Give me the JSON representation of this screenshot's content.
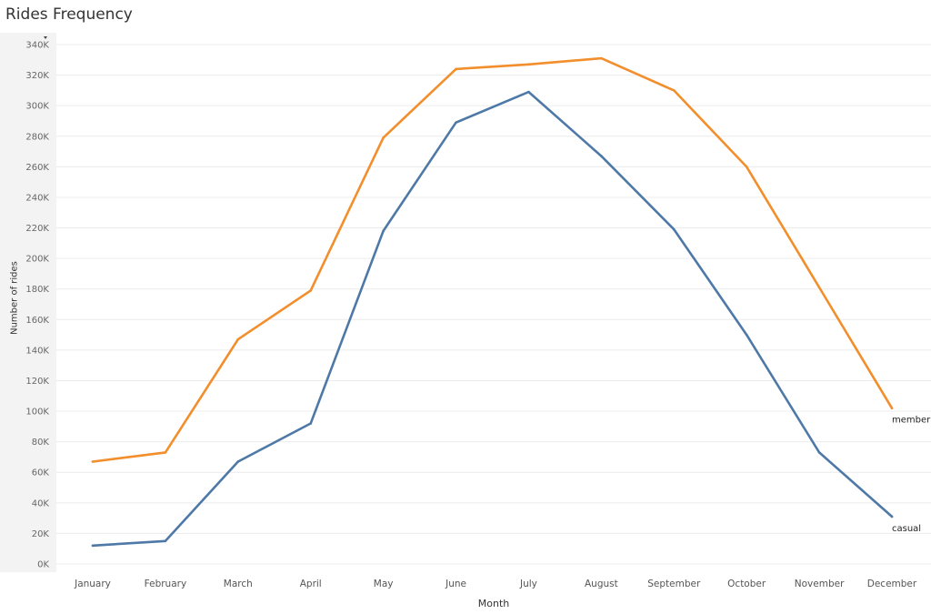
{
  "chart_data": {
    "type": "line",
    "title": "Rides Frequency",
    "xlabel": "Month",
    "ylabel": "Number of rides",
    "categories": [
      "January",
      "February",
      "March",
      "April",
      "May",
      "June",
      "July",
      "August",
      "September",
      "October",
      "November",
      "December"
    ],
    "ylim": [
      0,
      340000
    ],
    "yticks": [
      0,
      20000,
      40000,
      60000,
      80000,
      100000,
      120000,
      140000,
      160000,
      180000,
      200000,
      220000,
      240000,
      260000,
      280000,
      300000,
      320000,
      340000
    ],
    "ytick_labels": [
      "0K",
      "20K",
      "40K",
      "60K",
      "80K",
      "100K",
      "120K",
      "140K",
      "160K",
      "180K",
      "200K",
      "220K",
      "240K",
      "260K",
      "280K",
      "300K",
      "320K",
      "340K"
    ],
    "grid": true,
    "series": [
      {
        "name": "member",
        "color": "#f28e2b",
        "values": [
          67000,
          73000,
          147000,
          179000,
          279000,
          324000,
          327000,
          331000,
          310000,
          260000,
          181000,
          102000
        ]
      },
      {
        "name": "casual",
        "color": "#4e79a7",
        "values": [
          12000,
          15000,
          67000,
          92000,
          218000,
          289000,
          309000,
          267000,
          219000,
          150000,
          73000,
          31000
        ]
      }
    ]
  }
}
